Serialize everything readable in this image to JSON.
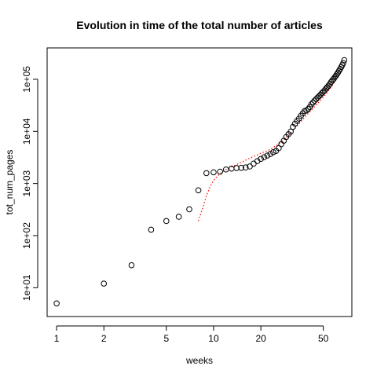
{
  "chart_data": {
    "type": "scatter",
    "title": "Evolution in time of the total number of articles",
    "xlabel": "weeks",
    "ylabel": "tot_num_pages",
    "x_scale": "log",
    "y_scale": "log",
    "xlim": [
      0.87,
      76
    ],
    "ylim": [
      2.8,
      400000
    ],
    "x_ticks": [
      1,
      2,
      5,
      10,
      20,
      50
    ],
    "x_tick_labels": [
      "1",
      "2",
      "5",
      "10",
      "20",
      "50"
    ],
    "y_ticks": [
      10,
      100,
      1000,
      10000,
      100000
    ],
    "y_tick_labels": [
      "1e+01",
      "1e+02",
      "1e+03",
      "1e+04",
      "1e+05"
    ],
    "grid": false,
    "colors": {
      "points": "#000000",
      "fit_line": "#ff0000"
    },
    "series": [
      {
        "kind": "points",
        "x": [
          1,
          2,
          3,
          4,
          5,
          6,
          7,
          8,
          9,
          10,
          11,
          12,
          13,
          14,
          15,
          16,
          17,
          18,
          19,
          20,
          21,
          22,
          23,
          24,
          25,
          26,
          27,
          28,
          29,
          30,
          31,
          32,
          33,
          34,
          35,
          36,
          37,
          38,
          39,
          40,
          41,
          42,
          43,
          44,
          45,
          46,
          47,
          48,
          49,
          50,
          51,
          52,
          53,
          54,
          55,
          56,
          57,
          58,
          59,
          60,
          61,
          62,
          63,
          64,
          65,
          66,
          67,
          68
        ],
        "y": [
          5,
          12,
          27,
          130,
          190,
          230,
          320,
          740,
          1580,
          1640,
          1690,
          1860,
          1930,
          1980,
          2000,
          2030,
          2120,
          2410,
          2690,
          2960,
          3190,
          3440,
          3680,
          3980,
          4220,
          4770,
          5680,
          6620,
          7810,
          8830,
          9920,
          12200,
          14100,
          15900,
          17600,
          19900,
          22200,
          24500,
          25200,
          26900,
          29300,
          33100,
          36000,
          38800,
          41700,
          44600,
          47400,
          50600,
          54500,
          57800,
          61200,
          66400,
          70800,
          75600,
          81400,
          88300,
          94800,
          100800,
          108400,
          115900,
          124700,
          134200,
          145600,
          157800,
          171300,
          186400,
          205100,
          233400
        ]
      },
      {
        "kind": "fit_line",
        "style": "dotted",
        "x": [
          8,
          8.5,
          9,
          9.5,
          10,
          11,
          12,
          14,
          16,
          18,
          20,
          23,
          26,
          30,
          35,
          40,
          45,
          50,
          55,
          60,
          65,
          68
        ],
        "y": [
          190,
          330,
          580,
          870,
          1150,
          1550,
          1850,
          2300,
          2800,
          3300,
          3800,
          4500,
          5800,
          8200,
          14000,
          22000,
          32000,
          45000,
          65000,
          95000,
          140000,
          180000
        ]
      }
    ]
  }
}
